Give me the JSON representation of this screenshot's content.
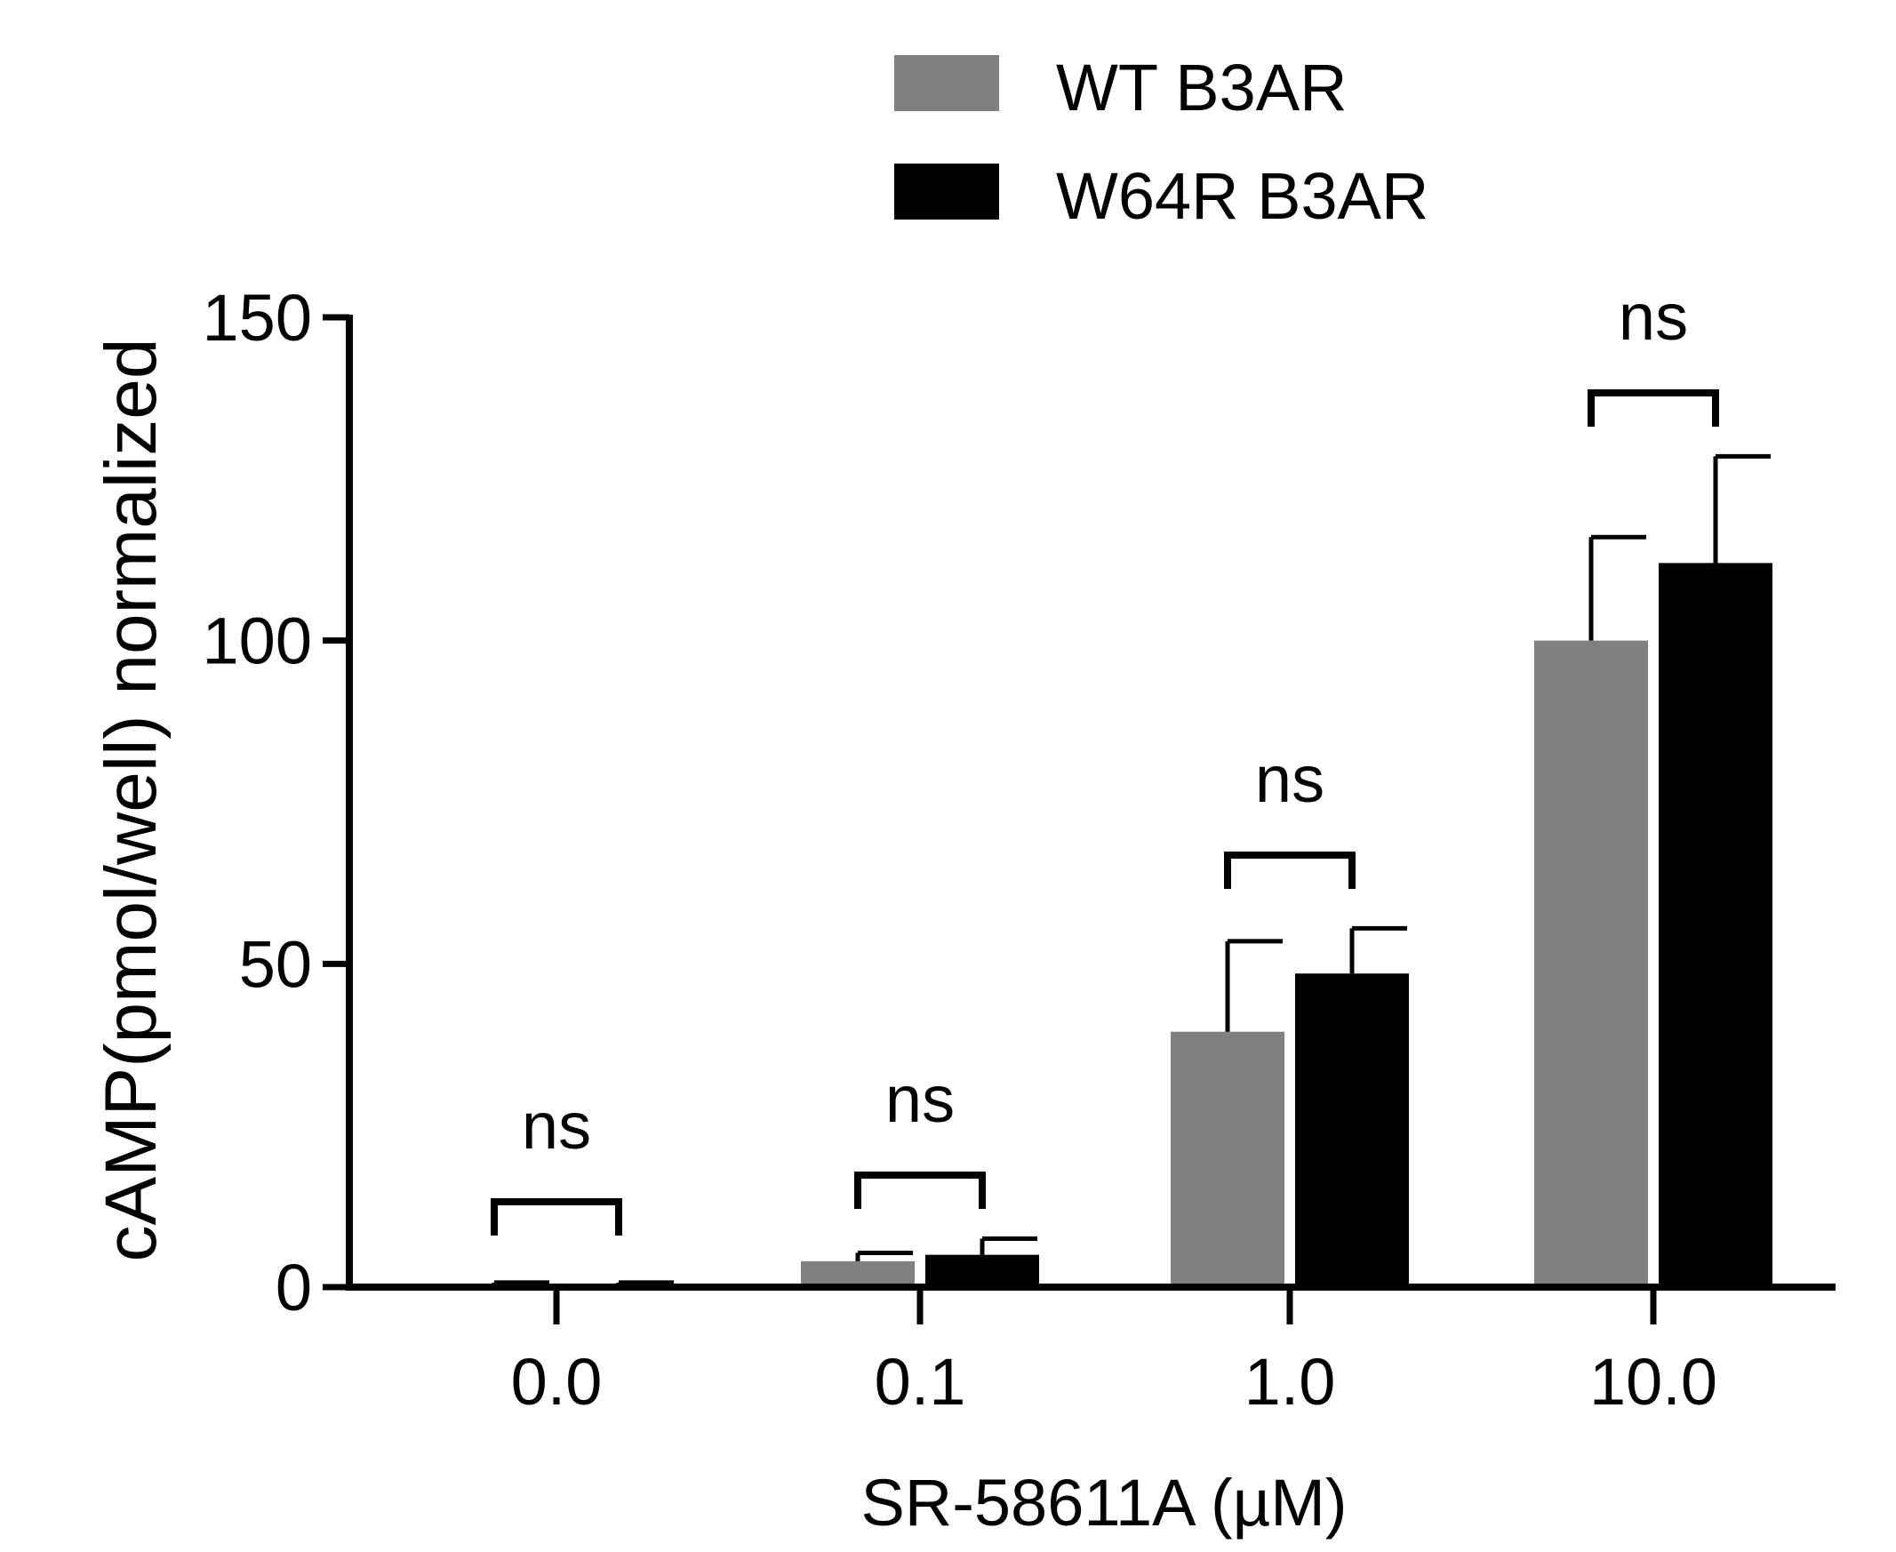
{
  "chart_data": {
    "type": "bar",
    "title": "",
    "xlabel": "SR-58611A (µM)",
    "ylabel": "cAMP(pmol/well) normalized",
    "ylim": [
      0,
      150
    ],
    "yticks": [
      0,
      50,
      100,
      150
    ],
    "ytick_labels": [
      "0",
      "50",
      "100",
      "150"
    ],
    "categories": [
      "0.0",
      "0.1",
      "1.0",
      "10.0"
    ],
    "series": [
      {
        "name": "WT B3AR",
        "color": "#808080",
        "values": [
          0.5,
          4,
          39.5,
          100
        ],
        "errors": [
          0.2,
          1.3,
          14,
          16
        ]
      },
      {
        "name": "W64R B3AR",
        "color": "#000000",
        "values": [
          0.5,
          5,
          48.5,
          112
        ],
        "errors": [
          0.2,
          2.5,
          7,
          16.5
        ]
      }
    ],
    "significance": [
      {
        "category": "0.0",
        "label": "ns"
      },
      {
        "category": "0.1",
        "label": "ns"
      },
      {
        "category": "1.0",
        "label": "ns"
      },
      {
        "category": "10.0",
        "label": "ns"
      }
    ],
    "legend": {
      "position": "top-center",
      "entries": [
        {
          "label": "WT B3AR",
          "color": "#808080"
        },
        {
          "label": "W64R B3AR",
          "color": "#000000"
        }
      ]
    },
    "grid": false
  }
}
